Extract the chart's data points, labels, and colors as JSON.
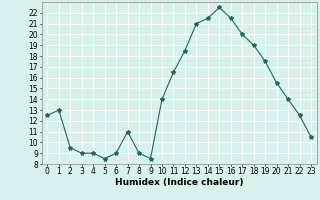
{
  "x": [
    0,
    1,
    2,
    3,
    4,
    5,
    6,
    7,
    8,
    9,
    10,
    11,
    12,
    13,
    14,
    15,
    16,
    17,
    18,
    19,
    20,
    21,
    22,
    23
  ],
  "y": [
    12.5,
    13.0,
    9.5,
    9.0,
    9.0,
    8.5,
    9.0,
    11.0,
    9.0,
    8.5,
    14.0,
    16.5,
    18.5,
    21.0,
    21.5,
    22.5,
    21.5,
    20.0,
    19.0,
    17.5,
    15.5,
    14.0,
    12.5,
    10.5
  ],
  "line_color": "#1a6b5a",
  "marker": "*",
  "marker_size": 3,
  "bg_color": "#d8f0ee",
  "grid_color": "#ffffff",
  "xlabel": "Humidex (Indice chaleur)",
  "xlim": [
    -0.5,
    23.5
  ],
  "ylim": [
    8,
    23
  ],
  "yticks": [
    8,
    9,
    10,
    11,
    12,
    13,
    14,
    15,
    16,
    17,
    18,
    19,
    20,
    21,
    22
  ],
  "xticks": [
    0,
    1,
    2,
    3,
    4,
    5,
    6,
    7,
    8,
    9,
    10,
    11,
    12,
    13,
    14,
    15,
    16,
    17,
    18,
    19,
    20,
    21,
    22,
    23
  ],
  "axis_fontsize": 5.5,
  "label_fontsize": 6.5,
  "spine_color": "#888888"
}
